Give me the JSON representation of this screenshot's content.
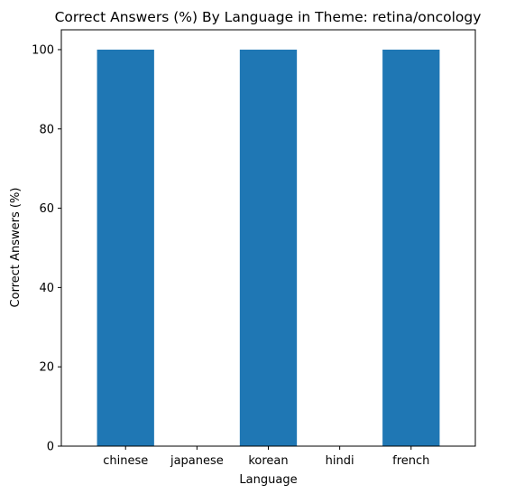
{
  "chart_data": {
    "type": "bar",
    "title": "Correct Answers (%) By Language in Theme: retina/oncology",
    "xlabel": "Language",
    "ylabel": "Correct Answers (%)",
    "categories": [
      "chinese",
      "japanese",
      "korean",
      "hindi",
      "french"
    ],
    "values": [
      100,
      0,
      100,
      0,
      100
    ],
    "ylim": [
      0,
      105
    ],
    "yticks": [
      0,
      20,
      40,
      60,
      80,
      100
    ],
    "grid": false,
    "legend": "none",
    "bar_color": "#1f77b4"
  }
}
